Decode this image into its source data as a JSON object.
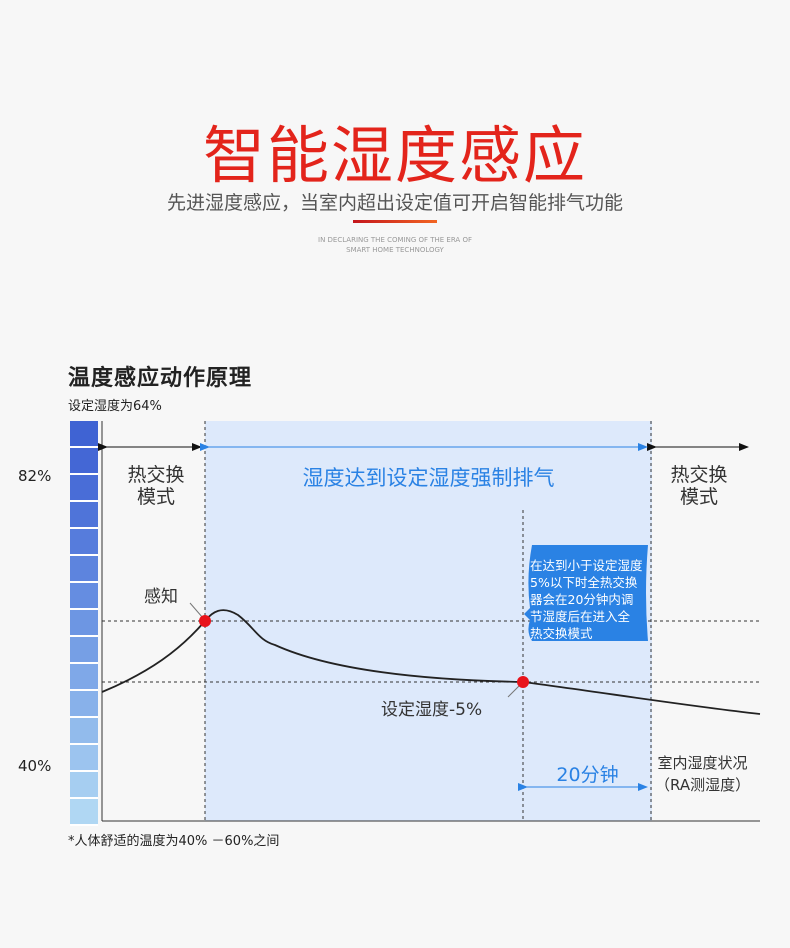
{
  "header": {
    "title": "智能湿度感应",
    "subtitle": "先进湿度感应，当室内超出设定值可开启智能排气功能",
    "english_line1": "IN DECLARING THE COMING OF THE ERA OF",
    "english_line2": "SMART HOME TECHNOLOGY"
  },
  "diagram": {
    "title": "温度感应动作原理",
    "set_humidity": "设定湿度为64%",
    "y_top_label": "82%",
    "y_bottom_label": "40%",
    "left_zone": [
      "热交换",
      "模式"
    ],
    "right_zone": [
      "热交换",
      "模式"
    ],
    "middle_zone": "湿度达到设定湿度强制排气",
    "sense_label": "感知",
    "lower_point_label": "设定湿度-5%",
    "callout_lines": [
      "在达到小于设定湿度",
      "5%以下时全热交换",
      "器会在20分钟内调",
      "节湿度后在进入全",
      "热交换模式"
    ],
    "duration_label": "20分钟",
    "curve_label": [
      "室内湿度状况",
      "（RA测湿度）"
    ],
    "footnote": "*人体舒适的温度为40% －60%之间"
  },
  "colors": {
    "title_red": "#e3241b",
    "accent_blue": "#2a82e4",
    "zone_fill": "#dde9fb",
    "point_red": "#e8131b"
  },
  "scale_colors": [
    "#3f63d3",
    "#4467d5",
    "#496dd7",
    "#4f74d9",
    "#567cdc",
    "#5d84de",
    "#658de1",
    "#6d96e3",
    "#769fe5",
    "#7fa8e8",
    "#88b1ea",
    "#92bbec",
    "#9cc4ef",
    "#a6cef1",
    "#b0d7f3"
  ]
}
